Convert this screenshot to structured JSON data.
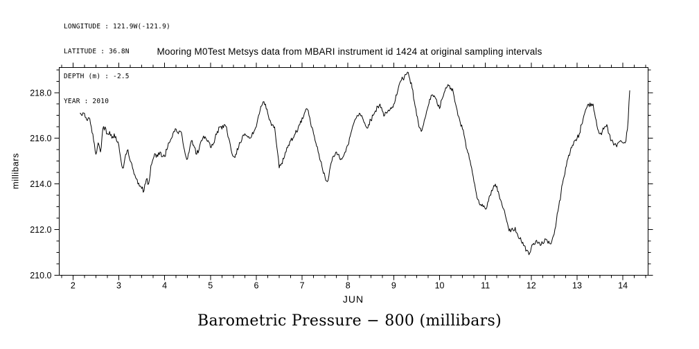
{
  "header_info": {
    "longitude": "LONGITUDE : 121.9W(-121.9)",
    "latitude": "LATITUDE : 36.8N",
    "depth": "DEPTH (m) : -2.5",
    "year": "YEAR : 2010"
  },
  "caption": "Barometric Pressure − 800 (millibars)",
  "chart_data": {
    "type": "line",
    "title": "Mooring M0Test Metsys data from MBARI instrument id 1424 at original sampling intervals",
    "xlabel": "JUN",
    "ylabel": "millibars",
    "xlim": [
      1.7,
      14.55
    ],
    "ylim": [
      210.0,
      219.1
    ],
    "x_ticks": [
      2,
      3,
      4,
      5,
      6,
      7,
      8,
      9,
      10,
      11,
      12,
      13,
      14
    ],
    "x_minor_step": 0.25,
    "y_ticks": [
      210.0,
      212.0,
      214.0,
      216.0,
      218.0
    ],
    "y_tick_labels": [
      "210.0",
      "212.0",
      "214.0",
      "216.0",
      "218.0"
    ],
    "y_minor_step": 0.5,
    "grid": false,
    "legend": "none",
    "line_color": "#000000",
    "noise_amplitude": 0.12,
    "series": [
      {
        "name": "barometric_pressure_minus_800_mb",
        "x_start": 2.15,
        "x_step": 0.05,
        "values": [
          217.1,
          217.0,
          217.1,
          216.8,
          216.9,
          216.5,
          215.9,
          215.3,
          215.8,
          215.4,
          216.4,
          216.5,
          216.2,
          216.3,
          216.0,
          216.2,
          215.9,
          215.7,
          215.0,
          214.7,
          215.3,
          215.5,
          215.0,
          214.7,
          214.4,
          214.2,
          213.9,
          213.8,
          213.7,
          214.2,
          214.0,
          214.8,
          215.1,
          215.3,
          215.2,
          215.4,
          215.2,
          215.2,
          215.5,
          215.8,
          216.0,
          216.3,
          216.4,
          216.2,
          216.3,
          215.8,
          215.3,
          215.1,
          215.6,
          215.9,
          215.6,
          215.3,
          215.5,
          215.9,
          216.1,
          216.0,
          215.9,
          215.6,
          215.7,
          216.0,
          216.3,
          216.5,
          216.4,
          216.6,
          216.5,
          216.0,
          215.5,
          215.2,
          215.3,
          215.5,
          215.8,
          216.1,
          216.2,
          216.1,
          216.0,
          216.1,
          216.3,
          216.5,
          217.0,
          217.4,
          217.6,
          217.5,
          217.1,
          216.8,
          216.6,
          216.5,
          215.6,
          214.7,
          214.9,
          215.1,
          215.4,
          215.7,
          215.9,
          216.0,
          216.2,
          216.3,
          216.6,
          216.9,
          217.1,
          217.3,
          217.0,
          216.5,
          216.2,
          215.8,
          215.4,
          215.0,
          214.6,
          214.3,
          214.1,
          214.6,
          215.0,
          215.2,
          215.4,
          215.3,
          215.1,
          215.2,
          215.4,
          215.7,
          216.1,
          216.5,
          216.8,
          217.0,
          217.1,
          217.0,
          216.7,
          216.5,
          216.6,
          216.8,
          217.0,
          217.2,
          217.4,
          217.5,
          217.2,
          217.0,
          217.1,
          217.2,
          217.3,
          217.5,
          217.9,
          218.2,
          218.5,
          218.6,
          218.8,
          218.9,
          218.6,
          218.2,
          217.6,
          217.0,
          216.5,
          216.3,
          216.6,
          217.0,
          217.4,
          217.7,
          217.9,
          217.8,
          217.5,
          217.3,
          217.7,
          218.0,
          218.2,
          218.3,
          218.2,
          218.0,
          217.5,
          217.0,
          216.7,
          216.4,
          216.0,
          215.5,
          215.1,
          214.7,
          214.1,
          213.6,
          213.3,
          213.1,
          213.0,
          212.9,
          213.2,
          213.5,
          213.7,
          213.9,
          213.9,
          213.5,
          213.2,
          212.9,
          212.5,
          212.1,
          211.9,
          212.0,
          212.1,
          211.8,
          211.6,
          211.4,
          211.3,
          211.1,
          210.9,
          211.2,
          211.4,
          211.5,
          211.4,
          211.3,
          211.4,
          211.6,
          211.5,
          211.4,
          211.5,
          211.8,
          212.4,
          213.0,
          213.6,
          214.2,
          214.7,
          215.1,
          215.4,
          215.7,
          215.9,
          216.0,
          216.2,
          216.6,
          217.0,
          217.3,
          217.5,
          217.4,
          217.5,
          216.9,
          216.4,
          216.2,
          216.3,
          216.5,
          216.6,
          216.2,
          215.9,
          215.7,
          215.7,
          215.8,
          215.9,
          215.8,
          215.8,
          216.4,
          218.1
        ]
      }
    ]
  }
}
